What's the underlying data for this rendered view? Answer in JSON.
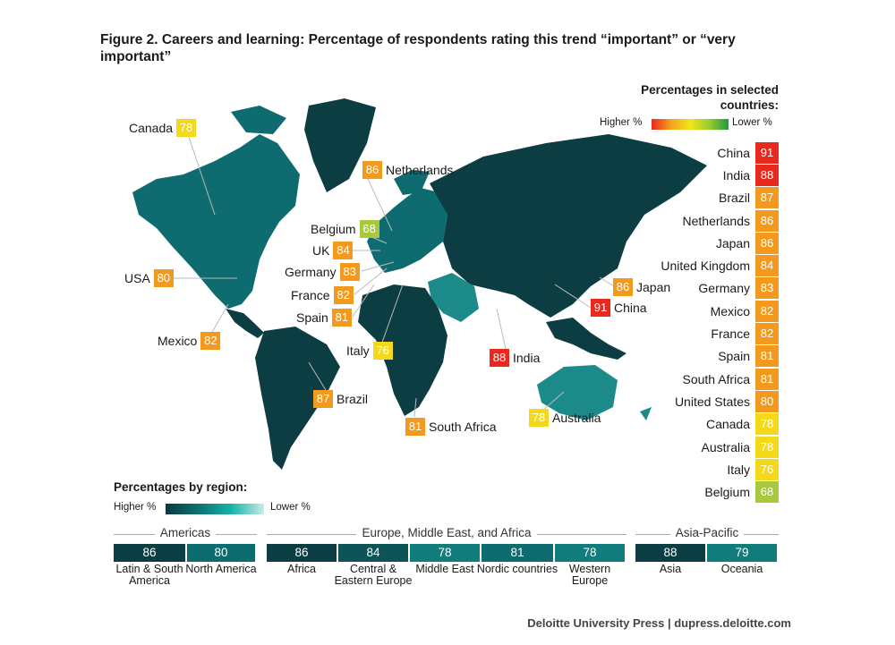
{
  "title": "Figure 2. Careers and learning: Percentage of respondents rating this trend “important” or “very important”",
  "legend": {
    "selected_title": "Percentages in selected countries:",
    "higher": "Higher %",
    "lower": "Lower %",
    "region_title": "Percentages by region:"
  },
  "colors": {
    "dark_teal": "#0b3d42",
    "mid_teal": "#0e6b6f",
    "light_teal": "#1c8a88",
    "val_91": "#e8291d",
    "val_88": "#e8291d",
    "val_87": "#f39a1e",
    "val_86": "#f39a1e",
    "val_84": "#f39a1e",
    "val_83": "#f39a1e",
    "val_82": "#f39a1e",
    "val_81": "#f39a1e",
    "val_80": "#f39a1e",
    "val_78": "#f4d81a",
    "val_76": "#f4d81a",
    "val_68": "#a8c840"
  },
  "map_labels": [
    {
      "name": "Canada",
      "value": 78,
      "side": "left"
    },
    {
      "name": "Netherlands",
      "value": 86,
      "side": "right"
    },
    {
      "name": "Belgium",
      "value": 68,
      "side": "left"
    },
    {
      "name": "UK",
      "value": 84,
      "side": "left"
    },
    {
      "name": "Germany",
      "value": 83,
      "side": "left"
    },
    {
      "name": "USA",
      "value": 80,
      "side": "left"
    },
    {
      "name": "France",
      "value": 82,
      "side": "left"
    },
    {
      "name": "Spain",
      "value": 81,
      "side": "left"
    },
    {
      "name": "Japan",
      "value": 86,
      "side": "right"
    },
    {
      "name": "China",
      "value": 91,
      "side": "right"
    },
    {
      "name": "Mexico",
      "value": 82,
      "side": "left"
    },
    {
      "name": "Italy",
      "value": 76,
      "side": "left"
    },
    {
      "name": "India",
      "value": 88,
      "side": "right"
    },
    {
      "name": "Brazil",
      "value": 87,
      "side": "right"
    },
    {
      "name": "Australia",
      "value": 78,
      "side": "right"
    },
    {
      "name": "South Africa",
      "value": 81,
      "side": "right"
    }
  ],
  "chart_data": [
    {
      "type": "table",
      "title": "Percentages in selected countries:",
      "categories": [
        "China",
        "India",
        "Brazil",
        "Netherlands",
        "Japan",
        "United Kingdom",
        "Germany",
        "Mexico",
        "France",
        "Spain",
        "South Africa",
        "United States",
        "Canada",
        "Australia",
        "Italy",
        "Belgium"
      ],
      "values": [
        91,
        88,
        87,
        86,
        86,
        84,
        83,
        82,
        82,
        81,
        81,
        80,
        78,
        78,
        76,
        68
      ]
    },
    {
      "type": "table",
      "title": "Percentages by region:",
      "groups": [
        {
          "name": "Americas",
          "regions": [
            {
              "name": "Latin & South America",
              "value": 86
            },
            {
              "name": "North America",
              "value": 80
            }
          ]
        },
        {
          "name": "Europe, Middle East, and Africa",
          "regions": [
            {
              "name": "Africa",
              "value": 86
            },
            {
              "name": "Central & Eastern Europe",
              "value": 84
            },
            {
              "name": "Middle East",
              "value": 78
            },
            {
              "name": "Nordic countries",
              "value": 81
            },
            {
              "name": "Western Europe",
              "value": 78
            }
          ]
        },
        {
          "name": "Asia-Pacific",
          "regions": [
            {
              "name": "Asia",
              "value": 88
            },
            {
              "name": "Oceania",
              "value": 79
            }
          ]
        }
      ]
    }
  ],
  "credit": "Deloitte University Press  |  dupress.deloitte.com"
}
